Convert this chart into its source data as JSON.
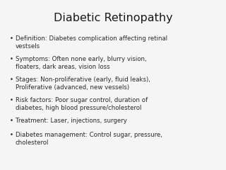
{
  "title": "Diabetic Retinopathy",
  "background_color": "#f5f5f5",
  "title_color": "#1a1a1a",
  "text_color": "#2a2a2a",
  "title_fontsize": 11.5,
  "bullet_fontsize": 6.2,
  "bullet_points": [
    "Definition: Diabetes complication affecting retinal\nvestsels",
    "Symptoms: Often none early, blurry vision,\nfloaters, dark areas, vision loss",
    "Stages: Non-proliferative (early, fluid leaks),\nProliferative (advanced, new vessels)",
    "Risk factors: Poor sugar control, duration of\ndiabetes, high blood pressure/cholesterol",
    "Treatment: Laser, injections, surgery",
    "Diabetes management: Control sugar, pressure,\ncholesterol"
  ],
  "bullet_char": "•",
  "title_font": "DejaVu Sans",
  "body_font": "DejaVu Sans",
  "fig_width": 3.2,
  "fig_height": 2.4,
  "dpi": 100
}
